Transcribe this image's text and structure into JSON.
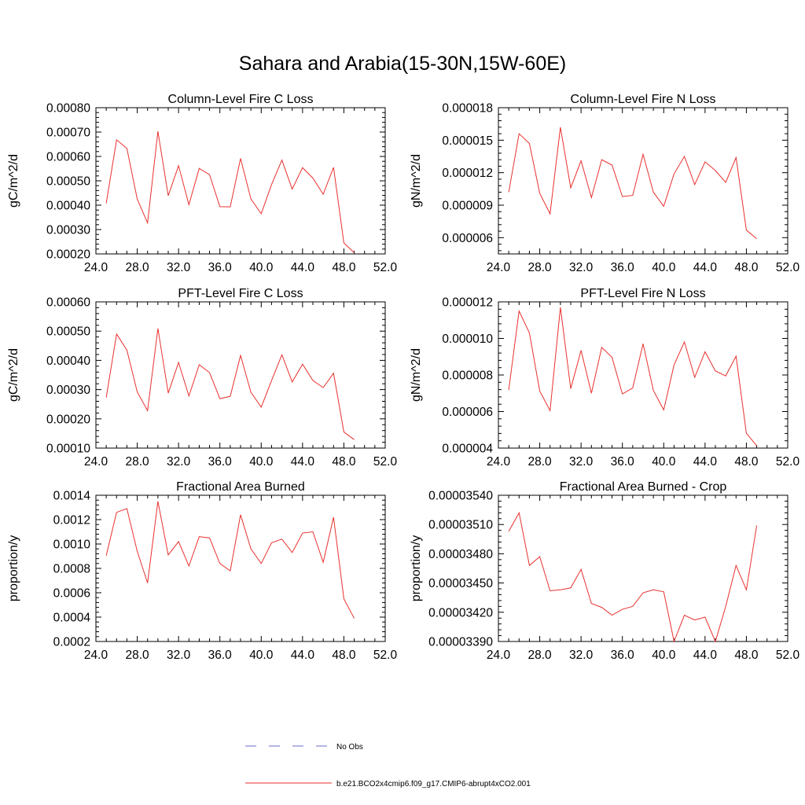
{
  "figure": {
    "title": "Sahara and Arabia(15-30N,15W-60E)",
    "legend": [
      {
        "label": "No Obs",
        "color": "#6a6acd",
        "dash": "dashed"
      },
      {
        "label": "b.e21.BCO2x4cmip6.f09_g17.CMIP6-abrupt4xCO2.001",
        "color": "#e8312f",
        "dash": "solid"
      }
    ]
  },
  "chart_data": [
    {
      "type": "line",
      "title": "Column-Level Fire C Loss",
      "ylabel": "gC/m^2/d",
      "xlim": [
        24,
        52
      ],
      "x_ticks": [
        "24.0",
        "28.0",
        "32.0",
        "36.0",
        "40.0",
        "44.0",
        "48.0",
        "52.0"
      ],
      "ylim": [
        0.0002,
        0.0008
      ],
      "y_ticks": [
        "0.00020",
        "0.00030",
        "0.00040",
        "0.00050",
        "0.00060",
        "0.00070",
        "0.00080"
      ],
      "series": [
        {
          "color": "#e8312f",
          "x": [
            25,
            26,
            27,
            28,
            29,
            30,
            31,
            32,
            33,
            34,
            35,
            36,
            37,
            38,
            39,
            40,
            41,
            42,
            43,
            44,
            45,
            46,
            47,
            48,
            49
          ],
          "y": [
            0.000408,
            0.000668,
            0.000633,
            0.000425,
            0.000327,
            0.000703,
            0.000439,
            0.000562,
            0.000402,
            0.000551,
            0.000525,
            0.000394,
            0.000393,
            0.000592,
            0.000426,
            0.000365,
            0.000485,
            0.000585,
            0.000466,
            0.000554,
            0.000511,
            0.000445,
            0.000555,
            0.000245,
            0.000205
          ]
        }
      ]
    },
    {
      "type": "line",
      "title": "Column-Level Fire N Loss",
      "ylabel": "gN/m^2/d",
      "xlim": [
        24,
        52
      ],
      "x_ticks": [
        "24.0",
        "28.0",
        "32.0",
        "36.0",
        "40.0",
        "44.0",
        "48.0",
        "52.0"
      ],
      "ylim": [
        4.5e-06,
        1.8e-05
      ],
      "y_ticks": [
        "0.000006",
        "0.000009",
        "0.000012",
        "0.000015",
        "0.000018"
      ],
      "series": [
        {
          "color": "#e8312f",
          "x": [
            25,
            26,
            27,
            28,
            29,
            30,
            31,
            32,
            33,
            34,
            35,
            36,
            37,
            38,
            39,
            40,
            41,
            42,
            43,
            44,
            45,
            46,
            47,
            48,
            49
          ],
          "y": [
            1.02e-05,
            1.56e-05,
            1.47e-05,
            1.01e-05,
            8.2e-06,
            1.62e-05,
            1.06e-05,
            1.31e-05,
            9.7e-06,
            1.32e-05,
            1.27e-05,
            9.8e-06,
            9.9e-06,
            1.37e-05,
            1.02e-05,
            8.9e-06,
            1.19e-05,
            1.35e-05,
            1.09e-05,
            1.3e-05,
            1.22e-05,
            1.11e-05,
            1.34e-05,
            6.7e-06,
            5.9e-06
          ]
        }
      ]
    },
    {
      "type": "line",
      "title": "PFT-Level Fire C Loss",
      "ylabel": "gC/m^2/d",
      "xlim": [
        24,
        52
      ],
      "x_ticks": [
        "24.0",
        "28.0",
        "32.0",
        "36.0",
        "40.0",
        "44.0",
        "48.0",
        "52.0"
      ],
      "ylim": [
        0.0001,
        0.0006
      ],
      "y_ticks": [
        "0.00010",
        "0.00020",
        "0.00030",
        "0.00040",
        "0.00050",
        "0.00060"
      ],
      "series": [
        {
          "color": "#e8312f",
          "x": [
            25,
            26,
            27,
            28,
            29,
            30,
            31,
            32,
            33,
            34,
            35,
            36,
            37,
            38,
            39,
            40,
            41,
            42,
            43,
            44,
            45,
            46,
            47,
            48,
            49
          ],
          "y": [
            0.000273,
            0.00049,
            0.000435,
            0.000292,
            0.000228,
            0.000509,
            0.000288,
            0.000393,
            0.000278,
            0.000385,
            0.000358,
            0.000269,
            0.000277,
            0.000417,
            0.000291,
            0.00024,
            0.000331,
            0.000419,
            0.000326,
            0.000387,
            0.000331,
            0.000307,
            0.000356,
            0.000155,
            0.000129
          ]
        }
      ]
    },
    {
      "type": "line",
      "title": "PFT-Level Fire N Loss",
      "ylabel": "gN/m^2/d",
      "xlim": [
        24,
        52
      ],
      "x_ticks": [
        "24.0",
        "28.0",
        "32.0",
        "36.0",
        "40.0",
        "44.0",
        "48.0",
        "52.0"
      ],
      "ylim": [
        4e-06,
        1.2e-05
      ],
      "y_ticks": [
        "0.000004",
        "0.000006",
        "0.000008",
        "0.000010",
        "0.000012"
      ],
      "series": [
        {
          "color": "#e8312f",
          "x": [
            25,
            26,
            27,
            28,
            29,
            30,
            31,
            32,
            33,
            34,
            35,
            36,
            37,
            38,
            39,
            40,
            41,
            42,
            43,
            44,
            45,
            46,
            47,
            48,
            49
          ],
          "y": [
            7.18e-06,
            1.15e-05,
            1.03e-05,
            7.12e-06,
            6.05e-06,
            1.17e-05,
            7.25e-06,
            9.35e-06,
            7e-06,
            9.51e-06,
            8.96e-06,
            6.96e-06,
            7.29e-06,
            9.71e-06,
            7.15e-06,
            6.09e-06,
            8.55e-06,
            9.81e-06,
            7.87e-06,
            9.27e-06,
            8.22e-06,
            7.95e-06,
            9.03e-06,
            4.81e-06,
            4.13e-06
          ]
        }
      ]
    },
    {
      "type": "line",
      "title": "Fractional Area Burned",
      "ylabel": "proportion/y",
      "xlim": [
        24,
        52
      ],
      "x_ticks": [
        "24.0",
        "28.0",
        "32.0",
        "36.0",
        "40.0",
        "44.0",
        "48.0",
        "52.0"
      ],
      "ylim": [
        0.0002,
        0.0014
      ],
      "y_ticks": [
        "0.0002",
        "0.0004",
        "0.0006",
        "0.0008",
        "0.0010",
        "0.0012",
        "0.0014"
      ],
      "series": [
        {
          "color": "#e8312f",
          "x": [
            25,
            26,
            27,
            28,
            29,
            30,
            31,
            32,
            33,
            34,
            35,
            36,
            37,
            38,
            39,
            40,
            41,
            42,
            43,
            44,
            45,
            46,
            47,
            48,
            49
          ],
          "y": [
            0.000905,
            0.00126,
            0.00129,
            0.00094,
            0.00068,
            0.00135,
            0.00091,
            0.00102,
            0.00082,
            0.00106,
            0.00105,
            0.00084,
            0.00078,
            0.00124,
            0.00096,
            0.00084,
            0.00101,
            0.00104,
            0.00093,
            0.00109,
            0.0011,
            0.00085,
            0.00122,
            0.00055,
            0.00039
          ]
        }
      ]
    },
    {
      "type": "line",
      "title": "Fractional Area Burned - Crop",
      "ylabel": "proportion/y",
      "xlim": [
        24,
        52
      ],
      "x_ticks": [
        "24.0",
        "28.0",
        "32.0",
        "36.0",
        "40.0",
        "44.0",
        "48.0",
        "52.0"
      ],
      "ylim": [
        3.39e-05,
        3.54e-05
      ],
      "y_ticks": [
        "0.00003390",
        "0.00003420",
        "0.00003450",
        "0.00003480",
        "0.00003510",
        "0.00003540"
      ],
      "series": [
        {
          "color": "#e8312f",
          "x": [
            25,
            26,
            27,
            28,
            29,
            30,
            31,
            32,
            33,
            34,
            35,
            36,
            37,
            38,
            39,
            40,
            41,
            42,
            43,
            44,
            45,
            46,
            47,
            48,
            49
          ],
          "y": [
            3.503e-05,
            3.522e-05,
            3.468e-05,
            3.477e-05,
            3.442e-05,
            3.443e-05,
            3.445e-05,
            3.464e-05,
            3.429e-05,
            3.425e-05,
            3.417e-05,
            3.423e-05,
            3.426e-05,
            3.44e-05,
            3.443e-05,
            3.441e-05,
            3.39e-05,
            3.417e-05,
            3.412e-05,
            3.415e-05,
            3.39e-05,
            3.426e-05,
            3.468e-05,
            3.443e-05,
            3.509e-05
          ]
        }
      ]
    }
  ]
}
